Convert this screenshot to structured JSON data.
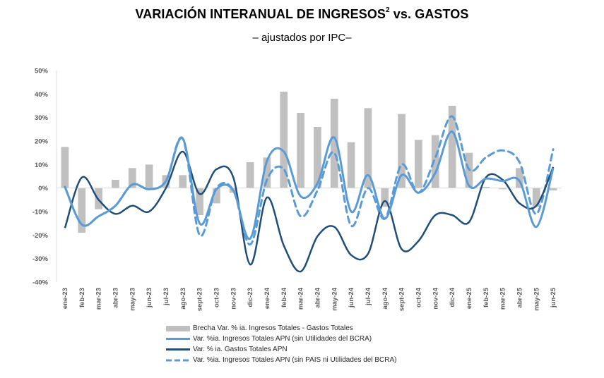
{
  "header": {
    "title_main": "VARIACIÓN INTERANUAL DE INGRESOS",
    "title_sup": "2",
    "title_tail": " vs. GASTOS",
    "subtitle": "– ajustados por IPC–"
  },
  "colors": {
    "bars": "#c0c0c0",
    "ingresos": "#5b9bd5",
    "gastos": "#1f4e79",
    "ingresos_sin_pais": "#5b9bd5",
    "axis": "#d9d9d9"
  },
  "chart_data": {
    "type": "bar",
    "title": "VARIACIÓN INTERANUAL DE INGRESOS vs. GASTOS",
    "subtitle": "– ajustados por IPC–",
    "xlabel": "",
    "ylabel": "",
    "ylim": [
      -40,
      50
    ],
    "yticks": [
      -40,
      -30,
      -20,
      -10,
      0,
      10,
      20,
      30,
      40,
      50
    ],
    "ytick_labels": [
      "-40%",
      "-30%",
      "-20%",
      "-10%",
      "0%",
      "10%",
      "20%",
      "30%",
      "40%",
      "50%"
    ],
    "grid": false,
    "legend_position": "bottom",
    "categories": [
      "ene-23",
      "feb-23",
      "mar-23",
      "abr-23",
      "may-23",
      "jun-23",
      "jul-23",
      "ago-23",
      "sept-23",
      "oct-23",
      "nov-23",
      "dic-23",
      "ene-24",
      "feb-24",
      "mar-24",
      "abr-24",
      "may-24",
      "jun-24",
      "jul-24",
      "ago-24",
      "sept-24",
      "oct-24",
      "nov-24",
      "dic-24",
      "ene-25",
      "feb-25",
      "mar-25",
      "abr-25",
      "may-25",
      "jun-25"
    ],
    "series": [
      {
        "name": "Brecha Var. % ia. Ingresos Totales - Gastos Totales",
        "type": "bar",
        "values": [
          17.5,
          -19,
          -9,
          3.5,
          8.5,
          10,
          5.5,
          5.5,
          -11.5,
          -6.5,
          -2,
          11,
          13,
          41,
          32,
          26,
          38,
          19.5,
          34,
          -8,
          31.5,
          20.5,
          22.5,
          35,
          15,
          0.5,
          -0.5,
          8.5,
          -8,
          -1
        ]
      },
      {
        "name": "Var. %ia. Ingresos Totales APN (sin Utilidades del BCRA)",
        "type": "line",
        "values": [
          0.5,
          -15.5,
          -12,
          -7.5,
          1.5,
          -0.5,
          3,
          21,
          -15,
          -0.5,
          -1,
          -21.5,
          11.5,
          15.5,
          -3.5,
          2,
          21.5,
          -10,
          5.5,
          -13,
          5.5,
          -2,
          6.5,
          24,
          1,
          4,
          3,
          3,
          -16.5,
          8.5
        ]
      },
      {
        "name": "Var. % ia. Gastos Totales APN",
        "type": "line",
        "values": [
          -17,
          4.5,
          -5,
          -11,
          -7.5,
          -10,
          0,
          15.5,
          -2.5,
          8,
          4.5,
          -32.5,
          -4,
          -24.5,
          -35.5,
          -20.5,
          -16.5,
          -28.5,
          -28,
          -5.5,
          -26,
          -22.5,
          -11.5,
          -11.5,
          -14.5,
          4.5,
          3.5,
          -6.5,
          -7.5,
          9
        ]
      },
      {
        "name": "Var. %ia. Ingresos Totales APN (sin PAIS ni Utilidades del BCRA)",
        "type": "dashed-line",
        "values": [
          0.5,
          -15.5,
          -12,
          -7.5,
          1.5,
          -0.5,
          3,
          21,
          -20,
          0,
          -1,
          -24,
          3.5,
          8,
          -12,
          -1,
          15,
          -16,
          0,
          -13,
          10,
          -2,
          13,
          30.5,
          8,
          13,
          16,
          11,
          -11,
          16.5
        ]
      }
    ]
  }
}
